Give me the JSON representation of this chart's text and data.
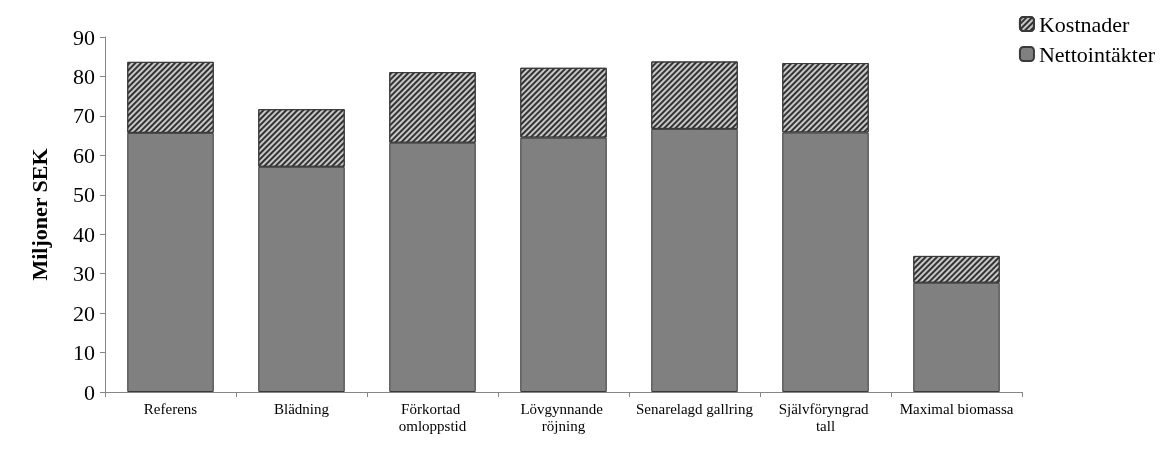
{
  "chart_data": {
    "type": "bar",
    "stacked": true,
    "ylabel": "Miljoner SEK",
    "categories": [
      "Referens",
      "Blädning",
      "Förkortad omloppstid",
      "Lövgynnande röjning",
      "Senarelagd gallring",
      "Självföryngrad tall",
      "Maximal biomassa"
    ],
    "series": [
      {
        "name": "Nettointäkter",
        "color": "#808080",
        "values": [
          65.7,
          57.1,
          63.2,
          64.5,
          66.7,
          65.8,
          27.7
        ]
      },
      {
        "name": "Kostnader",
        "color": "#c8c8c8",
        "values": [
          18.0,
          14.6,
          17.9,
          17.7,
          17.1,
          17.6,
          6.8
        ]
      }
    ],
    "ylim": [
      0,
      90
    ],
    "yticks": [
      0,
      10,
      20,
      30,
      40,
      50,
      60,
      70,
      80,
      90
    ],
    "grid": false,
    "legend": "top right"
  }
}
